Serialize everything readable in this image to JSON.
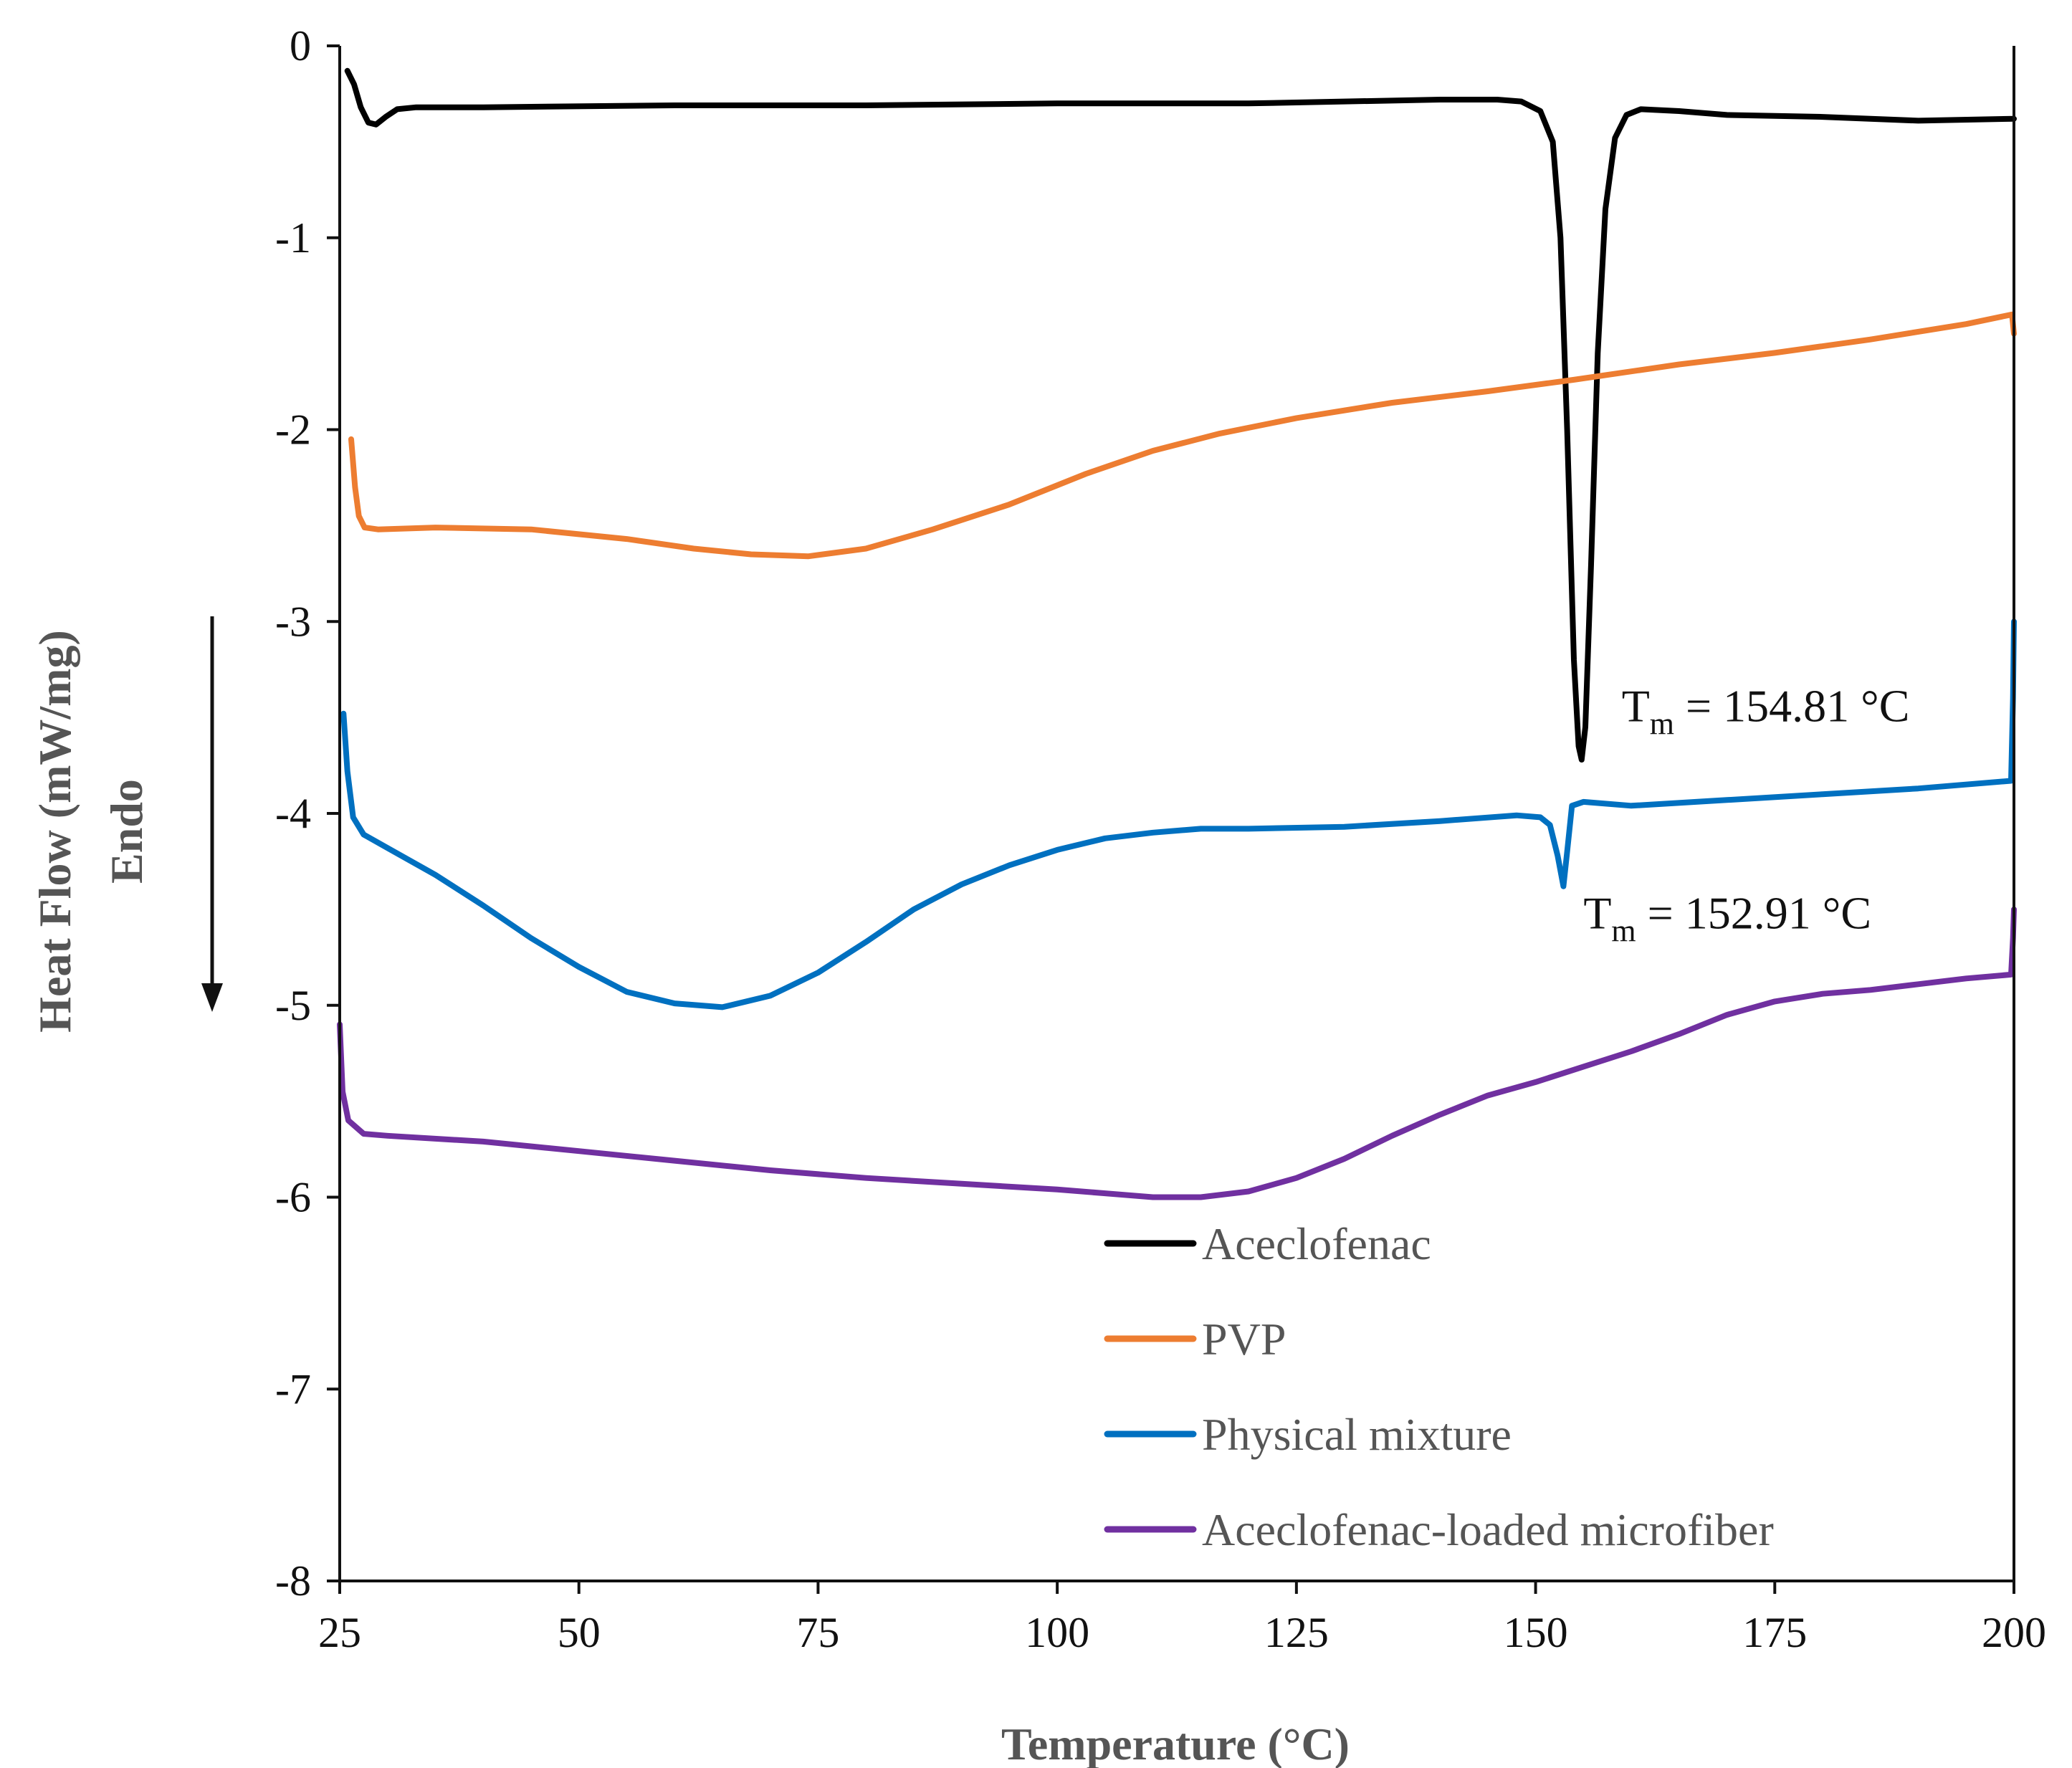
{
  "chart_data": {
    "type": "line",
    "title": "",
    "xlabel": "Temperature (°C)",
    "ylabel": "Heat Flow (mW/mg)",
    "ylabel_secondary": "Endo",
    "xlim": [
      25,
      200
    ],
    "ylim": [
      -8,
      0
    ],
    "xticks": [
      25,
      50,
      75,
      100,
      125,
      150,
      175,
      200
    ],
    "yticks": [
      0,
      -1,
      -2,
      -3,
      -4,
      -5,
      -6,
      -7,
      -8
    ],
    "grid": false,
    "legend_position": "bottom-right",
    "endo_arrow": "down",
    "series": [
      {
        "name": "Aceclofenac",
        "color": "#000000",
        "points": [
          [
            25.8,
            -0.13
          ],
          [
            26.5,
            -0.2
          ],
          [
            27.2,
            -0.32
          ],
          [
            28,
            -0.4
          ],
          [
            28.8,
            -0.41
          ],
          [
            29.8,
            -0.37
          ],
          [
            31,
            -0.33
          ],
          [
            33,
            -0.32
          ],
          [
            40,
            -0.32
          ],
          [
            60,
            -0.31
          ],
          [
            80,
            -0.31
          ],
          [
            100,
            -0.3
          ],
          [
            120,
            -0.3
          ],
          [
            140,
            -0.28
          ],
          [
            146,
            -0.28
          ],
          [
            148.5,
            -0.29
          ],
          [
            150.5,
            -0.34
          ],
          [
            151.8,
            -0.5
          ],
          [
            152.6,
            -1.0
          ],
          [
            153.3,
            -2.0
          ],
          [
            154,
            -3.2
          ],
          [
            154.5,
            -3.65
          ],
          [
            154.81,
            -3.72
          ],
          [
            155.2,
            -3.55
          ],
          [
            155.8,
            -2.7
          ],
          [
            156.5,
            -1.6
          ],
          [
            157.3,
            -0.85
          ],
          [
            158.3,
            -0.48
          ],
          [
            159.5,
            -0.36
          ],
          [
            161,
            -0.33
          ],
          [
            165,
            -0.34
          ],
          [
            170,
            -0.36
          ],
          [
            180,
            -0.37
          ],
          [
            190,
            -0.39
          ],
          [
            200,
            -0.38
          ]
        ]
      },
      {
        "name": "PVP",
        "color": "#ED7D31",
        "points": [
          [
            26.2,
            -2.05
          ],
          [
            26.6,
            -2.3
          ],
          [
            27.0,
            -2.45
          ],
          [
            27.6,
            -2.51
          ],
          [
            29,
            -2.52
          ],
          [
            35,
            -2.51
          ],
          [
            45,
            -2.52
          ],
          [
            55,
            -2.57
          ],
          [
            62,
            -2.62
          ],
          [
            68,
            -2.65
          ],
          [
            74,
            -2.66
          ],
          [
            80,
            -2.62
          ],
          [
            87,
            -2.52
          ],
          [
            95,
            -2.39
          ],
          [
            103,
            -2.23
          ],
          [
            110,
            -2.11
          ],
          [
            117,
            -2.02
          ],
          [
            125,
            -1.94
          ],
          [
            135,
            -1.86
          ],
          [
            145,
            -1.8
          ],
          [
            154,
            -1.74
          ],
          [
            165,
            -1.66
          ],
          [
            175,
            -1.6
          ],
          [
            185,
            -1.53
          ],
          [
            195,
            -1.45
          ],
          [
            199.8,
            -1.4
          ],
          [
            200,
            -1.5
          ]
        ]
      },
      {
        "name": "Physical mixture",
        "color": "#0070C0",
        "points": [
          [
            25.4,
            -3.48
          ],
          [
            25.8,
            -3.78
          ],
          [
            26.4,
            -4.02
          ],
          [
            27.5,
            -4.11
          ],
          [
            30,
            -4.18
          ],
          [
            35,
            -4.32
          ],
          [
            40,
            -4.48
          ],
          [
            45,
            -4.65
          ],
          [
            50,
            -4.8
          ],
          [
            55,
            -4.93
          ],
          [
            60,
            -4.99
          ],
          [
            65,
            -5.01
          ],
          [
            70,
            -4.95
          ],
          [
            75,
            -4.83
          ],
          [
            80,
            -4.67
          ],
          [
            85,
            -4.5
          ],
          [
            90,
            -4.37
          ],
          [
            95,
            -4.27
          ],
          [
            100,
            -4.19
          ],
          [
            105,
            -4.13
          ],
          [
            110,
            -4.1
          ],
          [
            115,
            -4.08
          ],
          [
            120,
            -4.08
          ],
          [
            130,
            -4.07
          ],
          [
            140,
            -4.04
          ],
          [
            148,
            -4.01
          ],
          [
            150.5,
            -4.02
          ],
          [
            151.5,
            -4.06
          ],
          [
            152.3,
            -4.22
          ],
          [
            152.91,
            -4.38
          ],
          [
            153.3,
            -4.2
          ],
          [
            153.8,
            -3.96
          ],
          [
            155,
            -3.94
          ],
          [
            160,
            -3.96
          ],
          [
            170,
            -3.93
          ],
          [
            180,
            -3.9
          ],
          [
            190,
            -3.87
          ],
          [
            199.7,
            -3.83
          ],
          [
            199.9,
            -3.4
          ],
          [
            200,
            -3.0
          ]
        ]
      },
      {
        "name": "Aceclofenac-loaded microfiber",
        "color": "#7030A0",
        "points": [
          [
            25,
            -5.1
          ],
          [
            25.3,
            -5.45
          ],
          [
            25.9,
            -5.6
          ],
          [
            27.5,
            -5.67
          ],
          [
            30,
            -5.68
          ],
          [
            40,
            -5.71
          ],
          [
            50,
            -5.76
          ],
          [
            60,
            -5.81
          ],
          [
            70,
            -5.86
          ],
          [
            80,
            -5.9
          ],
          [
            90,
            -5.93
          ],
          [
            100,
            -5.96
          ],
          [
            105,
            -5.98
          ],
          [
            110,
            -6.0
          ],
          [
            115,
            -6.0
          ],
          [
            120,
            -5.97
          ],
          [
            125,
            -5.9
          ],
          [
            130,
            -5.8
          ],
          [
            135,
            -5.68
          ],
          [
            140,
            -5.57
          ],
          [
            145,
            -5.47
          ],
          [
            150,
            -5.4
          ],
          [
            155,
            -5.32
          ],
          [
            160,
            -5.24
          ],
          [
            165,
            -5.15
          ],
          [
            170,
            -5.05
          ],
          [
            175,
            -4.98
          ],
          [
            180,
            -4.94
          ],
          [
            185,
            -4.92
          ],
          [
            190,
            -4.89
          ],
          [
            195,
            -4.86
          ],
          [
            199.7,
            -4.84
          ],
          [
            199.9,
            -4.65
          ],
          [
            200,
            -4.5
          ]
        ]
      }
    ],
    "annotations": [
      {
        "base": "T",
        "sub": "m",
        "text": " = 154.81 °C",
        "x": 159,
        "y": -3.52
      },
      {
        "base": "T",
        "sub": "m",
        "text": " = 152.91 °C",
        "x": 155,
        "y": -4.6
      }
    ]
  }
}
